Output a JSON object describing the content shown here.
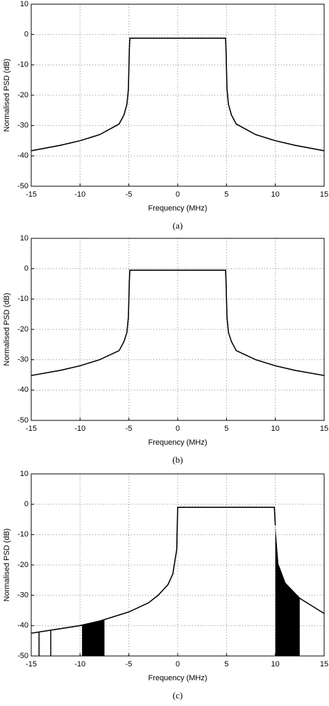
{
  "chart_data": [
    {
      "type": "line",
      "caption": "(a)",
      "x_label": "Frequency (MHz)",
      "y_label": "Normalised PSD (dB)",
      "x": [
        -15,
        -12,
        -10,
        -8,
        -6,
        -5.5,
        -5.2,
        -5.05,
        -4.95,
        -4.9,
        0,
        4.9,
        4.95,
        5.05,
        5.2,
        5.5,
        6,
        8,
        10,
        12,
        15
      ],
      "series": [
        {
          "color": "#000000",
          "values": [
            -38.3,
            -36.5,
            -35,
            -33,
            -29.5,
            -26.5,
            -23,
            -18,
            -5,
            -1.2,
            -1.2,
            -1.2,
            -5,
            -18,
            -23,
            -26.5,
            -29.5,
            -33,
            -35,
            -36.5,
            -38.3
          ]
        }
      ],
      "xlim": [
        -15,
        15
      ],
      "ylim": [
        -50,
        10
      ],
      "xticks": [
        -15,
        -10,
        -5,
        0,
        5,
        10,
        15
      ],
      "yticks": [
        -50,
        -40,
        -30,
        -20,
        -10,
        0,
        10
      ],
      "grid": true
    },
    {
      "type": "line",
      "caption": "(b)",
      "x_label": "Frequency (MHz)",
      "y_label": "Normalised PSD (dB)",
      "x": [
        -15,
        -12,
        -10,
        -8,
        -6,
        -5.5,
        -5.2,
        -5.05,
        -4.95,
        -4.9,
        0,
        4.9,
        4.95,
        5.05,
        5.2,
        5.5,
        6,
        8,
        10,
        12,
        15
      ],
      "series": [
        {
          "color": "#000000",
          "values": [
            -35.2,
            -33.5,
            -32,
            -30,
            -27,
            -24,
            -21,
            -16,
            -4,
            -0.5,
            -0.5,
            -0.5,
            -4,
            -16,
            -21,
            -24,
            -27,
            -30,
            -32,
            -33.5,
            -35.2
          ]
        }
      ],
      "xlim": [
        -15,
        15
      ],
      "ylim": [
        -50,
        10
      ],
      "xticks": [
        -15,
        -10,
        -5,
        0,
        5,
        10,
        15
      ],
      "yticks": [
        -50,
        -40,
        -30,
        -20,
        -10,
        0,
        10
      ],
      "grid": true
    },
    {
      "type": "line",
      "caption": "(c)",
      "x_label": "Frequency (MHz)",
      "y_label": "Normalised PSD (dB)",
      "x": [
        -15,
        -12,
        -10,
        -8,
        -5,
        -3,
        -2,
        -1,
        -0.5,
        -0.1,
        0,
        5,
        9.9,
        10,
        10,
        10.3,
        11,
        12.5,
        15
      ],
      "series": [
        {
          "color": "#000000",
          "values": [
            -42.5,
            -41,
            -40,
            -38.5,
            -35.5,
            -32.5,
            -30,
            -26.5,
            -23,
            -15,
            -1,
            -1,
            -1,
            -7,
            null,
            -20,
            -26,
            -31,
            -36
          ]
        }
      ],
      "fill_regions": [
        [
          -9.8,
          -7.5
        ],
        [
          10,
          12.5
        ]
      ],
      "spikes": [
        -14.2,
        -13
      ],
      "xlim": [
        -15,
        15
      ],
      "ylim": [
        -50,
        10
      ],
      "xticks": [
        -15,
        -10,
        -5,
        0,
        5,
        10,
        15
      ],
      "yticks": [
        -50,
        -40,
        -30,
        -20,
        -10,
        0,
        10
      ],
      "grid": true
    }
  ]
}
